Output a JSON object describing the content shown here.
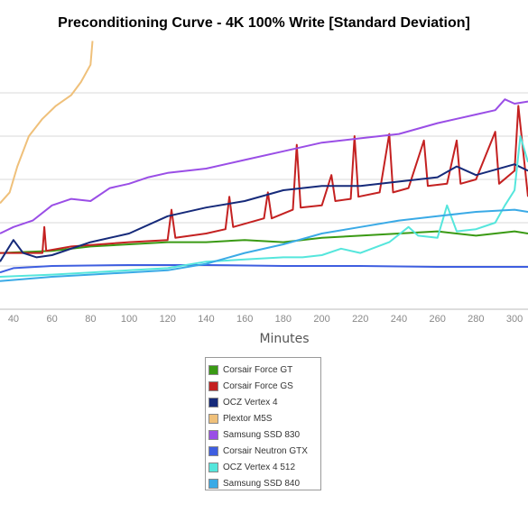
{
  "chart_data": {
    "type": "line",
    "title": "Preconditioning Curve - 4K 100% Write [Standard Deviation]",
    "xlabel": "Minutes",
    "ylabel": "",
    "xlim": [
      33,
      307
    ],
    "ylim": [
      0,
      6
    ],
    "x_ticks": [
      40,
      60,
      80,
      100,
      120,
      140,
      160,
      180,
      200,
      220,
      240,
      260,
      280,
      300
    ],
    "x_tick_labels": [
      "40",
      "60",
      "80",
      "100",
      "120",
      "140",
      "160",
      "180",
      "200",
      "220",
      "240",
      "260",
      "280",
      "300"
    ],
    "y_gridlines": [
      1,
      2,
      3,
      4,
      5
    ],
    "grid": "horizontal",
    "legend_position": "bottom",
    "series": [
      {
        "name": "Corsair Force GT",
        "color": "#3a9a14",
        "points": [
          [
            33,
            1.3
          ],
          [
            60,
            1.35
          ],
          [
            80,
            1.45
          ],
          [
            100,
            1.5
          ],
          [
            120,
            1.55
          ],
          [
            140,
            1.55
          ],
          [
            160,
            1.6
          ],
          [
            180,
            1.55
          ],
          [
            200,
            1.65
          ],
          [
            220,
            1.7
          ],
          [
            240,
            1.75
          ],
          [
            260,
            1.8
          ],
          [
            280,
            1.7
          ],
          [
            300,
            1.8
          ],
          [
            307,
            1.75
          ]
        ]
      },
      {
        "name": "Corsair Force GS",
        "color": "#c42121",
        "points": [
          [
            33,
            1.3
          ],
          [
            55,
            1.3
          ],
          [
            56,
            1.9
          ],
          [
            57,
            1.35
          ],
          [
            70,
            1.45
          ],
          [
            100,
            1.55
          ],
          [
            120,
            1.6
          ],
          [
            122,
            2.3
          ],
          [
            124,
            1.65
          ],
          [
            140,
            1.75
          ],
          [
            150,
            1.85
          ],
          [
            152,
            2.6
          ],
          [
            154,
            1.9
          ],
          [
            170,
            2.1
          ],
          [
            172,
            2.7
          ],
          [
            174,
            2.1
          ],
          [
            185,
            2.3
          ],
          [
            187,
            3.8
          ],
          [
            189,
            2.35
          ],
          [
            200,
            2.4
          ],
          [
            205,
            3.1
          ],
          [
            207,
            2.5
          ],
          [
            215,
            2.55
          ],
          [
            217,
            4.0
          ],
          [
            219,
            2.6
          ],
          [
            230,
            2.7
          ],
          [
            235,
            4.05
          ],
          [
            237,
            2.7
          ],
          [
            245,
            2.8
          ],
          [
            253,
            3.9
          ],
          [
            255,
            2.85
          ],
          [
            265,
            2.9
          ],
          [
            270,
            3.9
          ],
          [
            272,
            2.9
          ],
          [
            280,
            3.0
          ],
          [
            290,
            4.1
          ],
          [
            292,
            2.9
          ],
          [
            300,
            3.2
          ],
          [
            302,
            4.7
          ],
          [
            307,
            2.6
          ]
        ]
      },
      {
        "name": "OCZ Vertex 4",
        "color": "#162a7a",
        "points": [
          [
            33,
            1.1
          ],
          [
            40,
            1.6
          ],
          [
            45,
            1.3
          ],
          [
            52,
            1.2
          ],
          [
            60,
            1.25
          ],
          [
            80,
            1.55
          ],
          [
            100,
            1.75
          ],
          [
            120,
            2.15
          ],
          [
            140,
            2.35
          ],
          [
            160,
            2.5
          ],
          [
            180,
            2.75
          ],
          [
            200,
            2.85
          ],
          [
            220,
            2.85
          ],
          [
            240,
            2.95
          ],
          [
            260,
            3.05
          ],
          [
            270,
            3.3
          ],
          [
            280,
            3.1
          ],
          [
            300,
            3.35
          ],
          [
            307,
            3.2
          ]
        ]
      },
      {
        "name": "Plextor M5S",
        "color": "#efc07a",
        "points": [
          [
            33,
            2.45
          ],
          [
            38,
            2.7
          ],
          [
            42,
            3.3
          ],
          [
            48,
            4.0
          ],
          [
            55,
            4.4
          ],
          [
            62,
            4.7
          ],
          [
            70,
            4.95
          ],
          [
            75,
            5.25
          ],
          [
            80,
            5.65
          ],
          [
            81,
            6.2
          ]
        ]
      },
      {
        "name": "Samsung SSD 830",
        "color": "#9a4ee6",
        "points": [
          [
            33,
            1.75
          ],
          [
            40,
            1.9
          ],
          [
            50,
            2.05
          ],
          [
            60,
            2.4
          ],
          [
            70,
            2.55
          ],
          [
            80,
            2.5
          ],
          [
            90,
            2.8
          ],
          [
            100,
            2.9
          ],
          [
            110,
            3.05
          ],
          [
            120,
            3.15
          ],
          [
            140,
            3.25
          ],
          [
            160,
            3.45
          ],
          [
            180,
            3.65
          ],
          [
            200,
            3.85
          ],
          [
            220,
            3.95
          ],
          [
            240,
            4.05
          ],
          [
            260,
            4.3
          ],
          [
            280,
            4.5
          ],
          [
            290,
            4.6
          ],
          [
            295,
            4.85
          ],
          [
            300,
            4.75
          ],
          [
            307,
            4.8
          ]
        ]
      },
      {
        "name": "Corsair Neutron GTX",
        "color": "#3e5ee0",
        "points": [
          [
            33,
            0.85
          ],
          [
            40,
            0.95
          ],
          [
            60,
            1.0
          ],
          [
            100,
            1.02
          ],
          [
            140,
            1.02
          ],
          [
            180,
            1.0
          ],
          [
            220,
            1.0
          ],
          [
            260,
            0.98
          ],
          [
            300,
            0.98
          ],
          [
            307,
            0.98
          ]
        ]
      },
      {
        "name": "OCZ Vertex 4 512",
        "color": "#55e6dc",
        "points": [
          [
            33,
            0.75
          ],
          [
            60,
            0.8
          ],
          [
            80,
            0.85
          ],
          [
            100,
            0.9
          ],
          [
            120,
            0.95
          ],
          [
            140,
            1.1
          ],
          [
            160,
            1.15
          ],
          [
            180,
            1.2
          ],
          [
            190,
            1.2
          ],
          [
            200,
            1.25
          ],
          [
            210,
            1.4
          ],
          [
            220,
            1.3
          ],
          [
            235,
            1.55
          ],
          [
            245,
            1.9
          ],
          [
            250,
            1.7
          ],
          [
            260,
            1.65
          ],
          [
            265,
            2.4
          ],
          [
            270,
            1.8
          ],
          [
            280,
            1.85
          ],
          [
            290,
            2.0
          ],
          [
            295,
            2.4
          ],
          [
            300,
            2.75
          ],
          [
            303,
            4.0
          ],
          [
            307,
            3.4
          ]
        ]
      },
      {
        "name": "Samsung SSD 840",
        "color": "#3aaae6",
        "points": [
          [
            33,
            0.65
          ],
          [
            60,
            0.75
          ],
          [
            80,
            0.8
          ],
          [
            100,
            0.85
          ],
          [
            120,
            0.9
          ],
          [
            140,
            1.05
          ],
          [
            160,
            1.3
          ],
          [
            180,
            1.5
          ],
          [
            200,
            1.75
          ],
          [
            220,
            1.9
          ],
          [
            240,
            2.05
          ],
          [
            260,
            2.15
          ],
          [
            280,
            2.25
          ],
          [
            300,
            2.3
          ],
          [
            307,
            2.25
          ]
        ]
      }
    ]
  }
}
